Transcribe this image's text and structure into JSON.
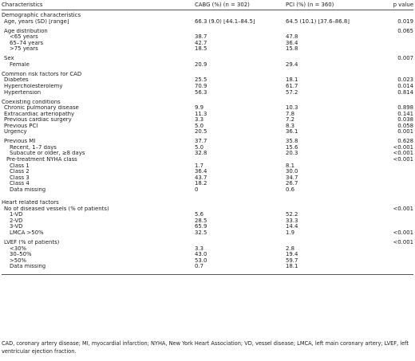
{
  "table": {
    "headers": {
      "characteristics": "Characteristics",
      "cabg": "CABG (%) (n = 302)",
      "pci": "PCI (%) (n = 360)",
      "pvalue": "p value"
    },
    "rows": [
      {
        "kind": "row",
        "level": 0,
        "label": "Demographic characteristics",
        "cabg": "",
        "pci": "",
        "p": ""
      },
      {
        "kind": "row",
        "level": 1,
        "label": "Age, years (SD) [range]",
        "cabg": "66.3 (9.0) [44.1–84.5]",
        "pci": "64.5 (10.1) [37.6–86.8]",
        "p": "0.019"
      },
      {
        "kind": "gap"
      },
      {
        "kind": "row",
        "level": 1,
        "label": "Age distribution",
        "cabg": "",
        "pci": "",
        "p": "0.065"
      },
      {
        "kind": "row",
        "level": 3,
        "label": "<65 years",
        "cabg": "38.7",
        "pci": "47.8",
        "p": ""
      },
      {
        "kind": "row",
        "level": 3,
        "label": "65–74 years",
        "cabg": "42.7",
        "pci": "36.4",
        "p": ""
      },
      {
        "kind": "row",
        "level": 3,
        "label": ">75 years",
        "cabg": "18.5",
        "pci": "15.8",
        "p": ""
      },
      {
        "kind": "gap"
      },
      {
        "kind": "row",
        "level": 1,
        "label": "Sex",
        "cabg": "",
        "pci": "",
        "p": "0.007"
      },
      {
        "kind": "row",
        "level": 3,
        "label": "Female",
        "cabg": "20.9",
        "pci": "29.4",
        "p": ""
      },
      {
        "kind": "gap"
      },
      {
        "kind": "row",
        "level": 0,
        "label": "Common risk factors for CAD",
        "cabg": "",
        "pci": "",
        "p": ""
      },
      {
        "kind": "row",
        "level": 1,
        "label": "Diabetes",
        "cabg": "25.5",
        "pci": "18.1",
        "p": "0.023"
      },
      {
        "kind": "row",
        "level": 1,
        "label": "Hypercholesterolemy",
        "cabg": "70.9",
        "pci": "61.7",
        "p": "0.014"
      },
      {
        "kind": "row",
        "level": 1,
        "label": "Hypertension",
        "cabg": "56.3",
        "pci": "57.2",
        "p": "0.814"
      },
      {
        "kind": "gap"
      },
      {
        "kind": "row",
        "level": 0,
        "label": "Coexisting conditions",
        "cabg": "",
        "pci": "",
        "p": ""
      },
      {
        "kind": "row",
        "level": 1,
        "label": "Chronic pulmonary disease",
        "cabg": "9.9",
        "pci": "10.3",
        "p": "0.898"
      },
      {
        "kind": "row",
        "level": 1,
        "label": "Extracardiac arteriopathy",
        "cabg": "11.3",
        "pci": "7.8",
        "p": "0.141"
      },
      {
        "kind": "row",
        "level": 1,
        "label": "Previous cardiac surgery",
        "cabg": "3.3",
        "pci": "7.2",
        "p": "0.038"
      },
      {
        "kind": "row",
        "level": 1,
        "label": "Previous PCI",
        "cabg": "5.0",
        "pci": "8.3",
        "p": "0.058"
      },
      {
        "kind": "row",
        "level": 1,
        "label": "Urgency",
        "cabg": "20.5",
        "pci": "36.1",
        "p": "0.001"
      },
      {
        "kind": "gap"
      },
      {
        "kind": "row",
        "level": 1,
        "label": "Previous MI",
        "cabg": "37.7",
        "pci": "35.8",
        "p": "0.628"
      },
      {
        "kind": "row",
        "level": 3,
        "label": "Recent, 1–7 days",
        "cabg": "5.0",
        "pci": "15.6",
        "p": "<0.001"
      },
      {
        "kind": "row",
        "level": 3,
        "label": "Subacute or older, ≥8 days",
        "cabg": "32.8",
        "pci": "20.3",
        "p": "<0.001"
      },
      {
        "kind": "row",
        "level": 2,
        "label": "Pre-treatment NYHA class",
        "cabg": "",
        "pci": "",
        "p": "<0.001"
      },
      {
        "kind": "row",
        "level": 3,
        "label": "Class 1",
        "cabg": "1.7",
        "pci": "8.1",
        "p": ""
      },
      {
        "kind": "row",
        "level": 3,
        "label": "Class 2",
        "cabg": "36.4",
        "pci": "30.0",
        "p": ""
      },
      {
        "kind": "row",
        "level": 3,
        "label": "Class 3",
        "cabg": "43.7",
        "pci": "34.7",
        "p": ""
      },
      {
        "kind": "row",
        "level": 3,
        "label": "Class 4",
        "cabg": "18.2",
        "pci": "26.7",
        "p": ""
      },
      {
        "kind": "row",
        "level": 3,
        "label": "Data missing",
        "cabg": "0",
        "pci": "0.6",
        "p": ""
      },
      {
        "kind": "gap"
      },
      {
        "kind": "gap"
      },
      {
        "kind": "row",
        "level": 0,
        "label": "Heart related factors",
        "cabg": "",
        "pci": "",
        "p": ""
      },
      {
        "kind": "row",
        "level": 1,
        "label": "No of diseased vessels (% of patients)",
        "cabg": "",
        "pci": "",
        "p": "<0.001"
      },
      {
        "kind": "row",
        "level": 3,
        "label": "1-VD",
        "cabg": "5.6",
        "pci": "52.2",
        "p": ""
      },
      {
        "kind": "row",
        "level": 3,
        "label": "2-VD",
        "cabg": "28.5",
        "pci": "33.3",
        "p": ""
      },
      {
        "kind": "row",
        "level": 3,
        "label": "3-VD",
        "cabg": "65.9",
        "pci": "14.4",
        "p": ""
      },
      {
        "kind": "row",
        "level": 3,
        "label": "LMCA >50%",
        "cabg": "32.5",
        "pci": "1.9",
        "p": "<0.001"
      },
      {
        "kind": "gap"
      },
      {
        "kind": "row",
        "level": 1,
        "label": "LVEF (% of patients)",
        "cabg": "",
        "pci": "",
        "p": "<0.001"
      },
      {
        "kind": "row",
        "level": 3,
        "label": "<30%",
        "cabg": "3.3",
        "pci": "2.8",
        "p": ""
      },
      {
        "kind": "row",
        "level": 3,
        "label": "30–50%",
        "cabg": "43.0",
        "pci": "19.4",
        "p": ""
      },
      {
        "kind": "row",
        "level": 3,
        "label": ">50%",
        "cabg": "53.0",
        "pci": "59.7",
        "p": ""
      },
      {
        "kind": "row",
        "level": 3,
        "label": "Data missing",
        "cabg": "0.7",
        "pci": "18.1",
        "p": ""
      }
    ]
  },
  "footnote": "CAD, coronary artery disease; MI, myocardial infarction; NYHA, New York Heart Association; VD, vessel disease; LMCA, left main coronary artery; LVEF, left ventricular ejection fraction."
}
